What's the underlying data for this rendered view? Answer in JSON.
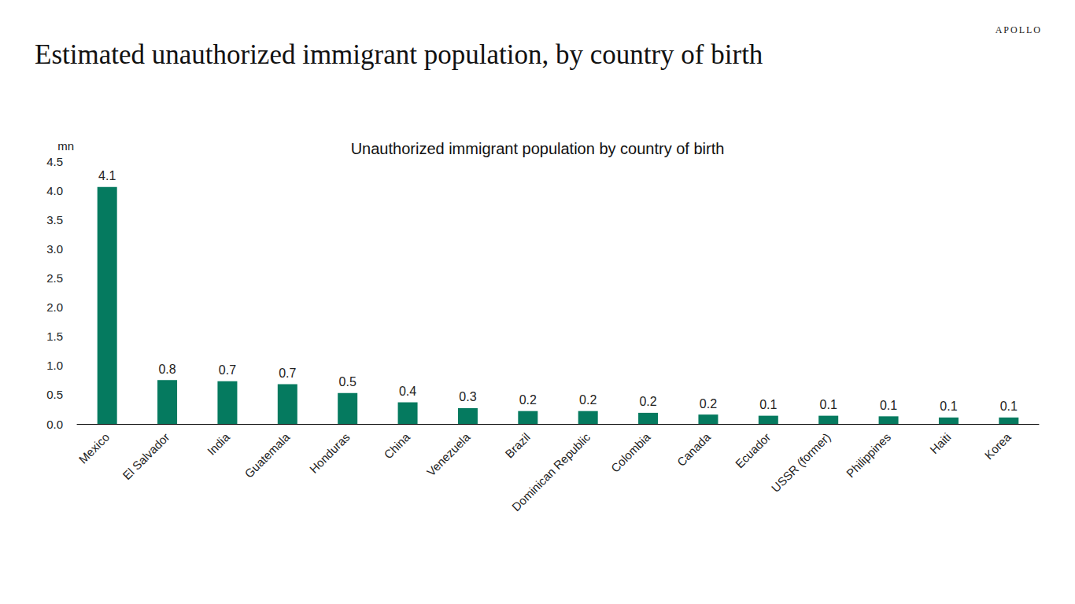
{
  "header": {
    "title": "Estimated unauthorized immigrant population, by country of birth",
    "brand": "APOLLO"
  },
  "chart_data": {
    "type": "bar",
    "title": "Unauthorized immigrant population by country of birth",
    "ylabel": "mn",
    "categories": [
      "Mexico",
      "El Salvador",
      "India",
      "Guatemala",
      "Honduras",
      "China",
      "Venezuela",
      "Brazil",
      "Dominican Republic",
      "Colombia",
      "Canada",
      "Ecuador",
      "USSR (former)",
      "Philippines",
      "Haiti",
      "Korea"
    ],
    "values": [
      4.06,
      0.75,
      0.73,
      0.68,
      0.53,
      0.37,
      0.27,
      0.22,
      0.22,
      0.19,
      0.16,
      0.14,
      0.14,
      0.13,
      0.11,
      0.11
    ],
    "value_labels": [
      "4.1",
      "0.8",
      "0.7",
      "0.7",
      "0.5",
      "0.4",
      "0.3",
      "0.2",
      "0.2",
      "0.2",
      "0.2",
      "0.1",
      "0.1",
      "0.1",
      "0.1",
      "0.1"
    ],
    "color": "#057a5f",
    "ylim": [
      0,
      4.5
    ],
    "yticks": [
      {
        "value": 0,
        "label": "0.0"
      },
      {
        "value": 0.5,
        "label": "0.5"
      },
      {
        "value": 1,
        "label": "1.0"
      },
      {
        "value": 1.5,
        "label": "1.5"
      },
      {
        "value": 2,
        "label": "2.0"
      },
      {
        "value": 2.5,
        "label": "2.5"
      },
      {
        "value": 3,
        "label": "3.0"
      },
      {
        "value": 3.5,
        "label": "3.5"
      },
      {
        "value": 4,
        "label": "4.0"
      },
      {
        "value": 4.5,
        "label": "4.5"
      }
    ],
    "grid": false,
    "data_labels": true
  }
}
